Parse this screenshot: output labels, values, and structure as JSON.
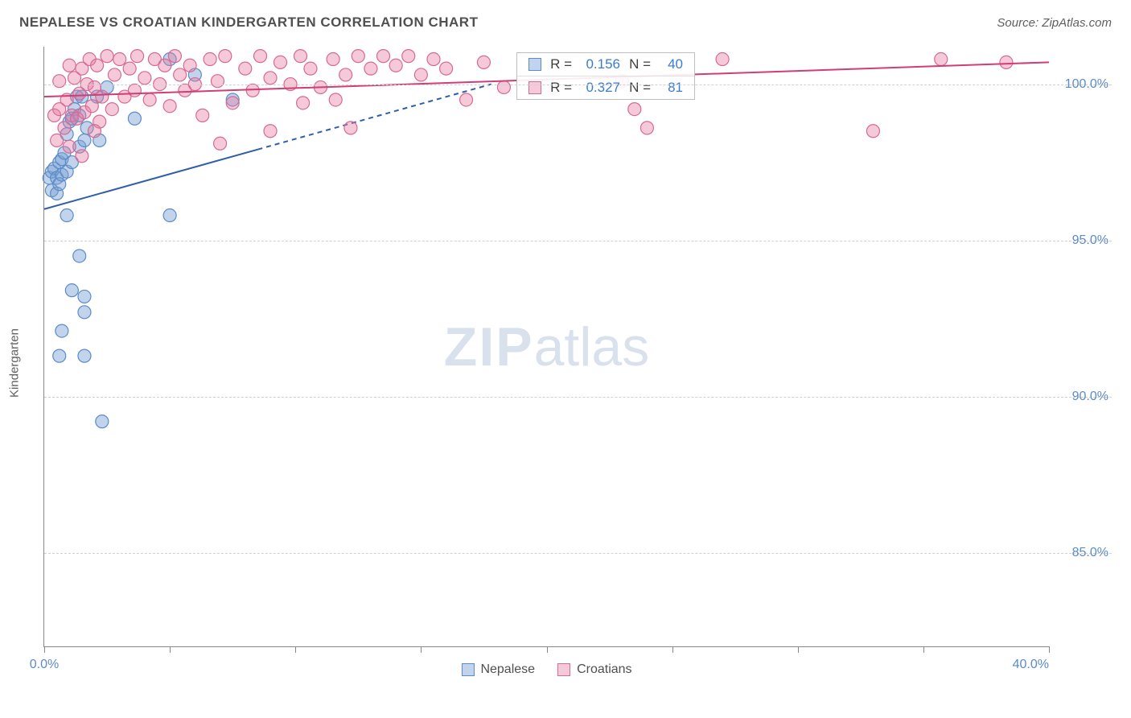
{
  "header": {
    "title": "NEPALESE VS CROATIAN KINDERGARTEN CORRELATION CHART",
    "source_prefix": "Source: ",
    "source_name": "ZipAtlas.com"
  },
  "watermark": {
    "left": "ZIP",
    "right": "atlas"
  },
  "chart": {
    "type": "scatter",
    "ylabel": "Kindergarten",
    "background_color": "#ffffff",
    "grid_color": "#d0d0d0",
    "axis_color": "#888888",
    "xlim": [
      0,
      40
    ],
    "ylim": [
      82,
      101.2
    ],
    "xtick_positions": [
      0,
      5,
      10,
      15,
      20,
      25,
      30,
      35,
      40
    ],
    "xtick_labels": {
      "0": "0.0%",
      "40": "40.0%"
    },
    "ytick_positions": [
      85,
      90,
      95,
      100
    ],
    "ytick_labels": {
      "85": "85.0%",
      "90": "90.0%",
      "95": "95.0%",
      "100": "100.0%"
    },
    "tick_label_color": "#5b8bc9",
    "tick_label_fontsize": 16,
    "series": [
      {
        "id": "nepalese",
        "label": "Nepalese",
        "marker_fill": "rgba(120,160,210,0.45)",
        "marker_stroke": "#5b8bc9",
        "marker_radius": 8,
        "r": "0.156",
        "n": "40",
        "trend": {
          "x1": 0,
          "y1": 96.0,
          "x_solid_end": 8.5,
          "x2": 17.8,
          "y2": 100.0,
          "color": "#2f5fa8",
          "width": 2
        },
        "points": [
          [
            0.2,
            97.0
          ],
          [
            0.3,
            97.2
          ],
          [
            0.3,
            96.6
          ],
          [
            0.4,
            97.3
          ],
          [
            0.5,
            97.0
          ],
          [
            0.5,
            96.5
          ],
          [
            0.6,
            97.5
          ],
          [
            0.6,
            96.8
          ],
          [
            0.7,
            97.6
          ],
          [
            0.7,
            97.1
          ],
          [
            0.8,
            97.8
          ],
          [
            0.9,
            97.2
          ],
          [
            0.9,
            98.4
          ],
          [
            1.0,
            98.8
          ],
          [
            1.1,
            97.5
          ],
          [
            1.1,
            98.9
          ],
          [
            1.2,
            99.2
          ],
          [
            1.3,
            99.6
          ],
          [
            1.4,
            98.0
          ],
          [
            1.4,
            99.0
          ],
          [
            1.5,
            99.6
          ],
          [
            1.6,
            98.2
          ],
          [
            1.7,
            98.6
          ],
          [
            2.1,
            99.6
          ],
          [
            2.2,
            98.2
          ],
          [
            2.5,
            99.9
          ],
          [
            3.6,
            98.9
          ],
          [
            0.9,
            95.8
          ],
          [
            5.0,
            95.8
          ],
          [
            1.4,
            94.5
          ],
          [
            1.1,
            93.4
          ],
          [
            1.6,
            93.2
          ],
          [
            1.6,
            92.7
          ],
          [
            0.7,
            92.1
          ],
          [
            0.6,
            91.3
          ],
          [
            1.6,
            91.3
          ],
          [
            2.3,
            89.2
          ],
          [
            7.5,
            99.5
          ],
          [
            6.0,
            100.3
          ],
          [
            5.0,
            100.8
          ]
        ]
      },
      {
        "id": "croatians",
        "label": "Croatians",
        "marker_fill": "rgba(233,120,160,0.40)",
        "marker_stroke": "#d56a94",
        "marker_radius": 8,
        "r": "0.327",
        "n": "81",
        "trend": {
          "x1": 0,
          "y1": 99.6,
          "x_solid_end": 40,
          "x2": 40,
          "y2": 100.7,
          "color": "#d13d74",
          "width": 2
        },
        "points": [
          [
            0.4,
            99.0
          ],
          [
            0.6,
            99.2
          ],
          [
            0.6,
            100.1
          ],
          [
            0.8,
            98.6
          ],
          [
            0.9,
            99.5
          ],
          [
            1.0,
            100.6
          ],
          [
            1.1,
            99.0
          ],
          [
            1.2,
            100.2
          ],
          [
            1.3,
            98.9
          ],
          [
            1.4,
            99.7
          ],
          [
            1.5,
            100.5
          ],
          [
            1.6,
            99.1
          ],
          [
            1.7,
            100.0
          ],
          [
            1.8,
            100.8
          ],
          [
            1.9,
            99.3
          ],
          [
            2.0,
            99.9
          ],
          [
            2.1,
            100.6
          ],
          [
            2.2,
            98.8
          ],
          [
            2.3,
            99.6
          ],
          [
            2.5,
            100.9
          ],
          [
            2.7,
            99.2
          ],
          [
            2.8,
            100.3
          ],
          [
            3.0,
            100.8
          ],
          [
            3.2,
            99.6
          ],
          [
            3.4,
            100.5
          ],
          [
            3.6,
            99.8
          ],
          [
            3.7,
            100.9
          ],
          [
            4.0,
            100.2
          ],
          [
            4.2,
            99.5
          ],
          [
            4.4,
            100.8
          ],
          [
            4.6,
            100.0
          ],
          [
            4.8,
            100.6
          ],
          [
            5.0,
            99.3
          ],
          [
            5.2,
            100.9
          ],
          [
            5.4,
            100.3
          ],
          [
            5.6,
            99.8
          ],
          [
            5.8,
            100.6
          ],
          [
            6.0,
            100.0
          ],
          [
            6.3,
            99.0
          ],
          [
            6.6,
            100.8
          ],
          [
            6.9,
            100.1
          ],
          [
            7.2,
            100.9
          ],
          [
            7.5,
            99.4
          ],
          [
            7.0,
            98.1
          ],
          [
            8.0,
            100.5
          ],
          [
            8.3,
            99.8
          ],
          [
            8.6,
            100.9
          ],
          [
            9.0,
            100.2
          ],
          [
            9.0,
            98.5
          ],
          [
            9.4,
            100.7
          ],
          [
            9.8,
            100.0
          ],
          [
            10.2,
            100.9
          ],
          [
            10.3,
            99.4
          ],
          [
            10.6,
            100.5
          ],
          [
            11.0,
            99.9
          ],
          [
            11.5,
            100.8
          ],
          [
            11.6,
            99.5
          ],
          [
            12.0,
            100.3
          ],
          [
            12.5,
            100.9
          ],
          [
            13.0,
            100.5
          ],
          [
            12.2,
            98.6
          ],
          [
            13.5,
            100.9
          ],
          [
            14.0,
            100.6
          ],
          [
            14.5,
            100.9
          ],
          [
            15.0,
            100.3
          ],
          [
            15.5,
            100.8
          ],
          [
            16.0,
            100.5
          ],
          [
            16.8,
            99.5
          ],
          [
            17.5,
            100.7
          ],
          [
            18.3,
            99.9
          ],
          [
            23.5,
            99.2
          ],
          [
            23.0,
            100.1
          ],
          [
            24.0,
            98.6
          ],
          [
            27.0,
            100.8
          ],
          [
            33.0,
            98.5
          ],
          [
            35.7,
            100.8
          ],
          [
            38.3,
            100.7
          ],
          [
            1.0,
            98.0
          ],
          [
            1.5,
            97.7
          ],
          [
            0.5,
            98.2
          ],
          [
            2.0,
            98.5
          ]
        ]
      }
    ],
    "legend_bottom": [
      {
        "label": "Nepalese",
        "fill": "rgba(120,160,210,0.45)",
        "stroke": "#5b8bc9"
      },
      {
        "label": "Croatians",
        "fill": "rgba(233,120,160,0.40)",
        "stroke": "#d56a94"
      }
    ],
    "stats_box": {
      "left_pct": 47,
      "top_pct": 1
    }
  }
}
